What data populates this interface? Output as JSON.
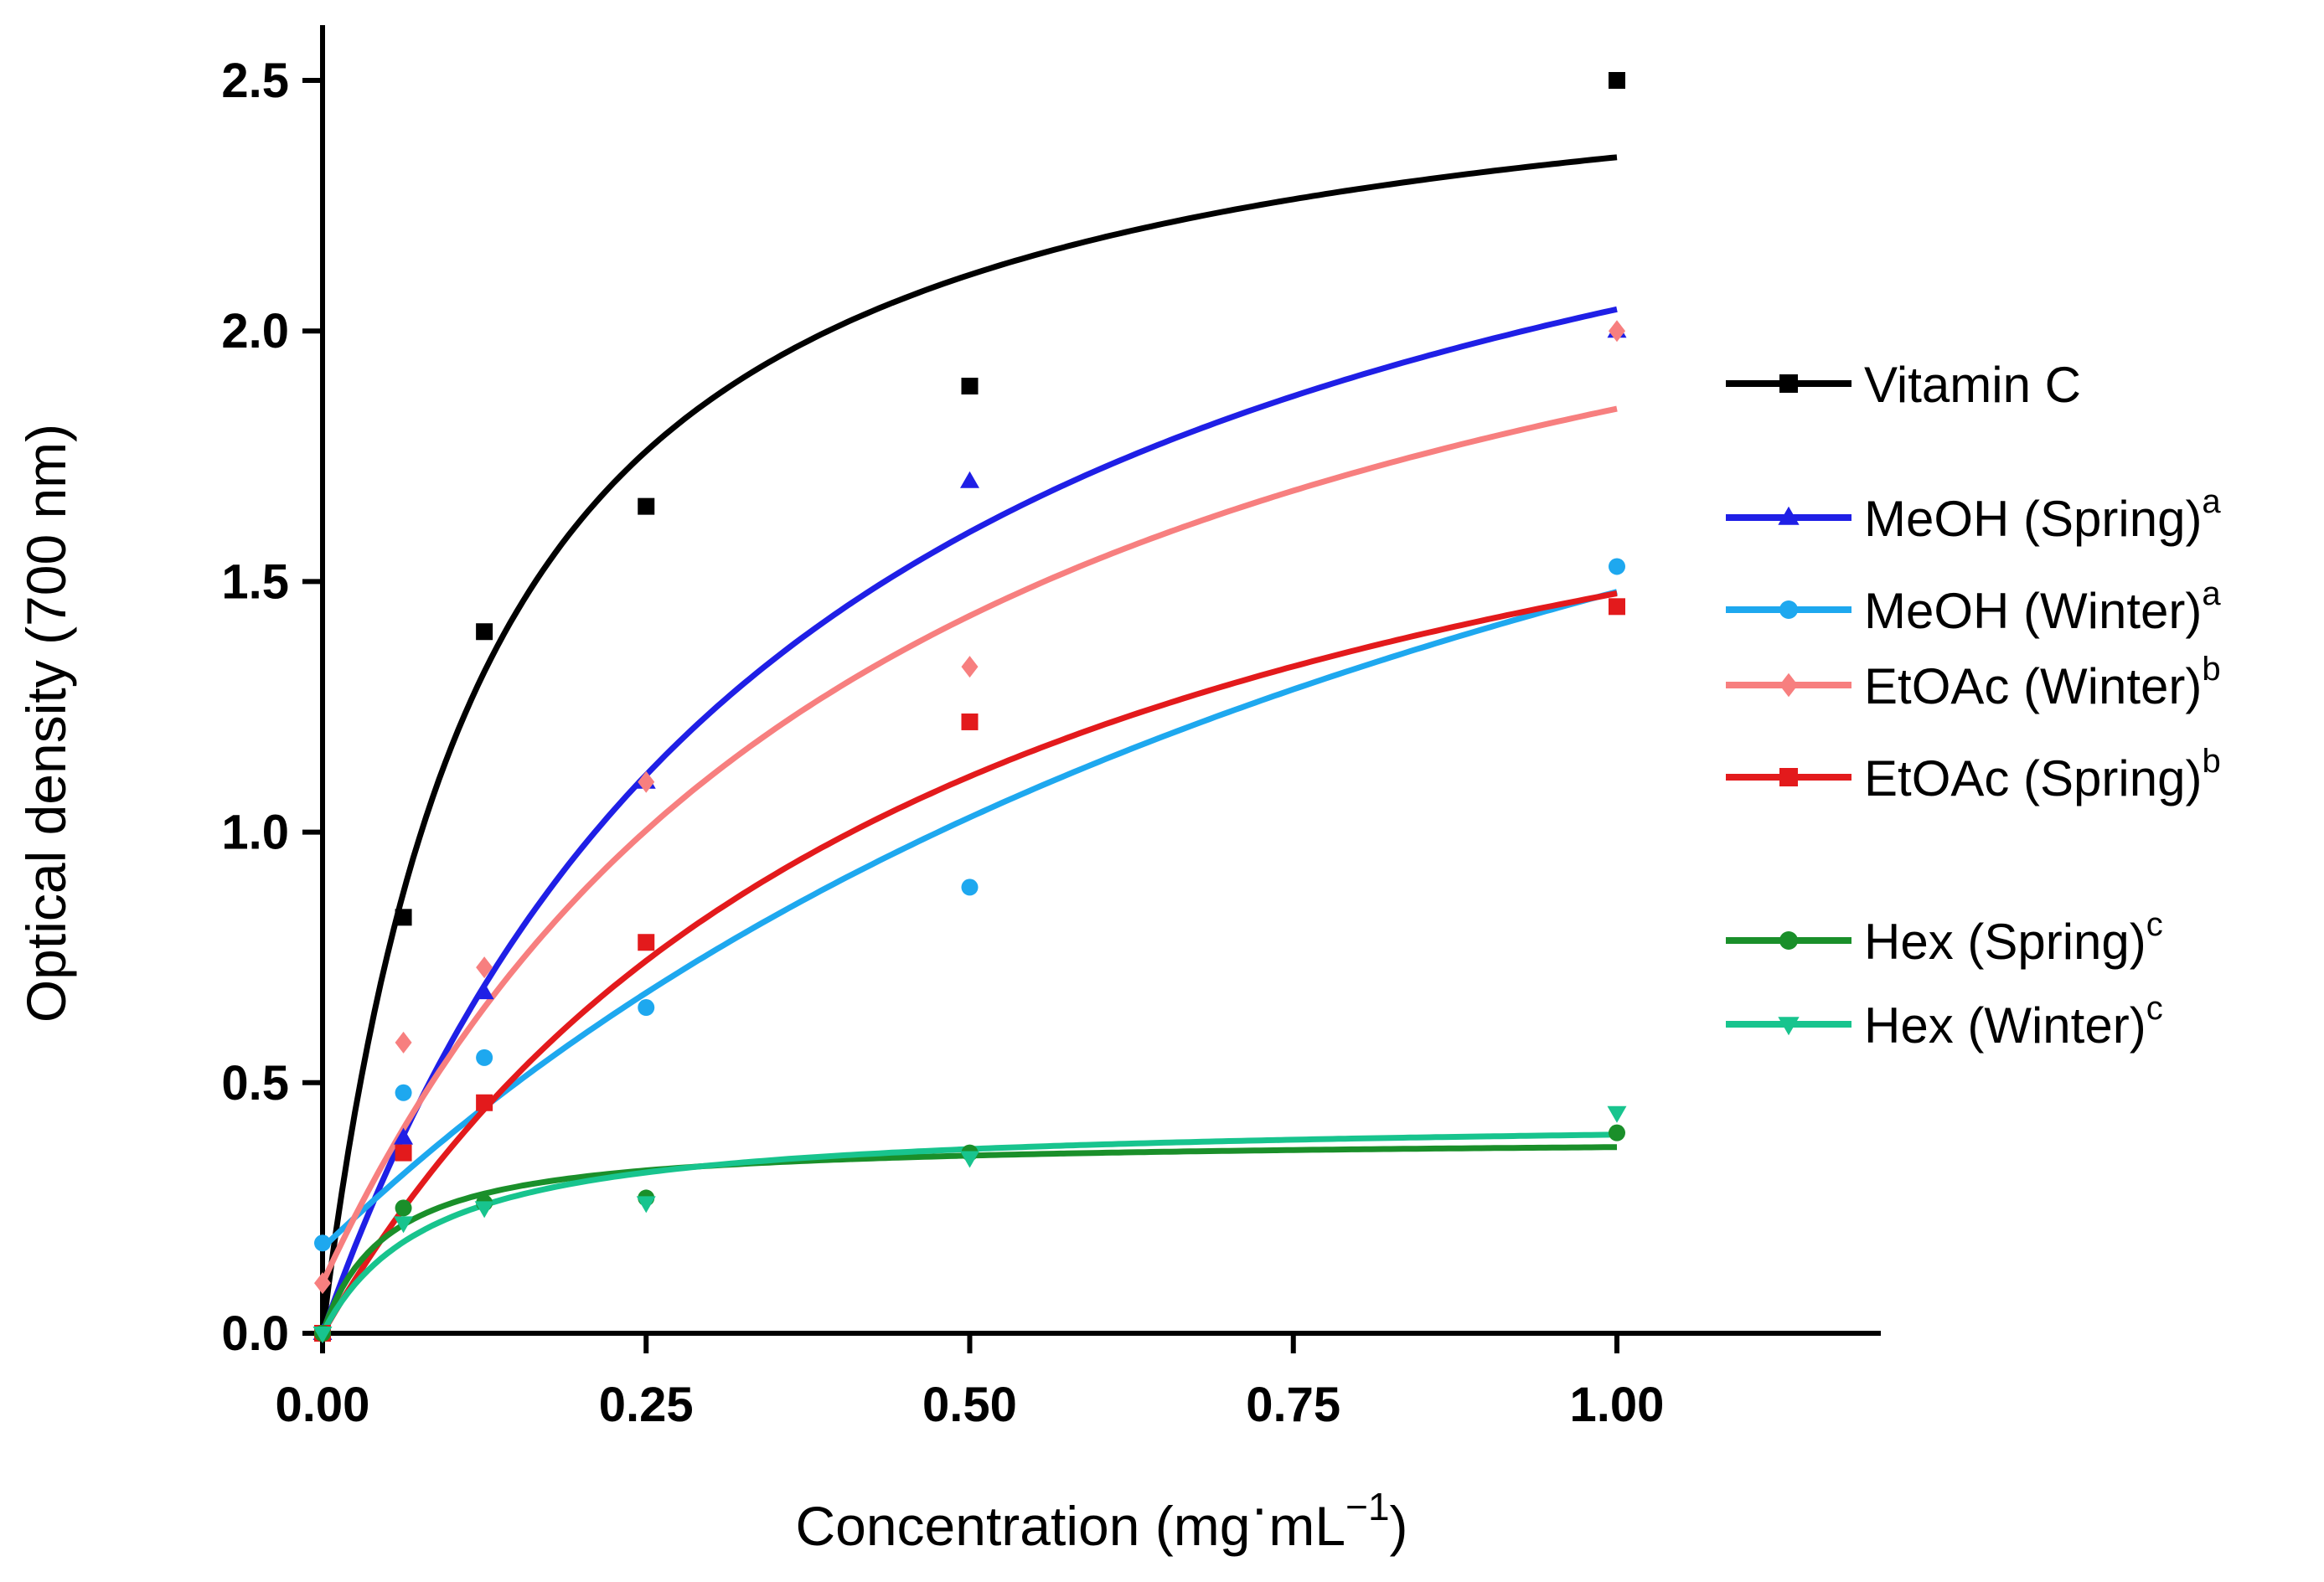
{
  "chart_data": {
    "type": "scatter",
    "title": "",
    "xlabel": "Concentration (mg·mL⁻¹)",
    "xlabel_parts": [
      "Concentration (mg",
      "·",
      "mL",
      "−1",
      ")"
    ],
    "ylabel": "Optical density (700 nm)",
    "xlim": [
      0,
      1.2
    ],
    "ylim": [
      0,
      2.6
    ],
    "x_ticks": [
      0,
      0.25,
      0.5,
      0.75,
      1.0
    ],
    "x_tick_labels": [
      "0.00",
      "0.25",
      "0.50",
      "0.75",
      "1.00"
    ],
    "y_ticks": [
      0,
      0.5,
      1.0,
      1.5,
      2.0,
      2.5
    ],
    "y_tick_labels": [
      "0.0",
      "0.5",
      "1.0",
      "1.5",
      "2.0",
      "2.5"
    ],
    "grid": false,
    "legend_position": "right",
    "series": [
      {
        "name": "Vitamin C",
        "superscript": "",
        "color": "#000000",
        "marker": "square",
        "x": [
          0,
          0.0625,
          0.125,
          0.25,
          0.5,
          1.0
        ],
        "y": [
          0,
          0.83,
          1.4,
          1.65,
          1.89,
          2.5
        ],
        "fit": {
          "model": "hyperbola",
          "bmax": 2.64,
          "kd": 0.125,
          "c": 0
        }
      },
      {
        "name": "MeOH (Spring)",
        "superscript": "a",
        "color": "#1f1fe6",
        "marker": "triangle-up",
        "x": [
          0,
          0.0625,
          0.125,
          0.25,
          0.5,
          1.0
        ],
        "y": [
          0,
          0.39,
          0.68,
          1.1,
          1.7,
          2.0
        ],
        "fit": {
          "model": "hyperbola",
          "bmax": 2.83,
          "kd": 0.385,
          "c": 0
        }
      },
      {
        "name": "MeOH (Winter)",
        "superscript": "a",
        "color": "#1ea8ef",
        "marker": "circle",
        "x": [
          0,
          0.0625,
          0.125,
          0.25,
          0.5,
          1.0
        ],
        "y": [
          0.18,
          0.48,
          0.55,
          0.65,
          0.89,
          1.53
        ],
        "fit": {
          "model": "hyperbola",
          "bmax": 2.75,
          "kd": 1.1,
          "c": 0.17
        }
      },
      {
        "name": "EtOAc (Winter)",
        "superscript": "b",
        "color": "#f77f7f",
        "marker": "diamond",
        "x": [
          0,
          0.0625,
          0.125,
          0.25,
          0.5,
          1.0
        ],
        "y": [
          0.1,
          0.58,
          0.73,
          1.1,
          1.33,
          2.0
        ],
        "fit": {
          "model": "hyperbola",
          "bmax": 2.53,
          "kd": 0.45,
          "c": 0.1
        }
      },
      {
        "name": "EtOAc (Spring)",
        "superscript": "b",
        "color": "#e31a1c",
        "marker": "square",
        "x": [
          0,
          0.0625,
          0.125,
          0.25,
          0.5,
          1.0
        ],
        "y": [
          0,
          0.36,
          0.46,
          0.78,
          1.22,
          1.45
        ],
        "fit": {
          "model": "hyperbola",
          "bmax": 2.2,
          "kd": 0.49,
          "c": 0
        }
      },
      {
        "name": "Hex (Spring)",
        "superscript": "c",
        "color": "#1a8f2a",
        "marker": "circle",
        "x": [
          0,
          0.0625,
          0.125,
          0.25,
          0.5,
          1.0
        ],
        "y": [
          0,
          0.25,
          0.26,
          0.27,
          0.36,
          0.4
        ],
        "fit": {
          "model": "hyperbola",
          "bmax": 0.39,
          "kd": 0.05,
          "c": 0
        }
      },
      {
        "name": "Hex (Winter)",
        "superscript": "c",
        "color": "#18c48e",
        "marker": "triangle-down",
        "x": [
          0,
          0.0625,
          0.125,
          0.25,
          0.5,
          1.0
        ],
        "y": [
          0,
          0.22,
          0.25,
          0.26,
          0.35,
          0.44
        ],
        "fit": {
          "model": "hyperbola",
          "bmax": 0.43,
          "kd": 0.085,
          "c": 0
        }
      }
    ]
  }
}
